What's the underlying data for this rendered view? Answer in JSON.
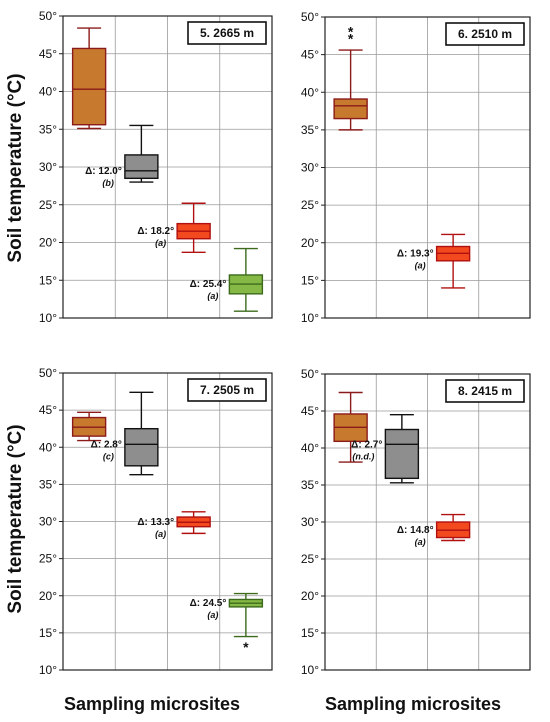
{
  "figure": {
    "ylabel": "Soil temperature (°C)",
    "xlabel": "Sampling microsites",
    "colors": {
      "brown_fill": "#c77a2e",
      "brown_edge": "#8b1a1a",
      "gray_fill": "#8e8e8e",
      "gray_edge": "#111111",
      "red_fill": "#f24a1e",
      "red_edge": "#b01010",
      "green_fill": "#86b845",
      "green_edge": "#3c6b1c"
    }
  },
  "chart_data": [
    {
      "type": "box",
      "title": "5. 2665 m",
      "ylim": [
        10,
        50
      ],
      "yticks": [
        "10°",
        "15°",
        "20°",
        "25°",
        "30°",
        "35°",
        "40°",
        "45°",
        "50°"
      ],
      "grid": true,
      "boxes": [
        {
          "color": "brown",
          "whisker_low": 35.1,
          "q1": 35.6,
          "median": 40.3,
          "q3": 45.7,
          "whisker_high": 48.4,
          "outliers": []
        },
        {
          "color": "gray",
          "whisker_low": 28.0,
          "q1": 28.5,
          "median": 29.5,
          "q3": 31.6,
          "whisker_high": 35.5,
          "outliers": [],
          "delta": "Δ: 12.0°",
          "sig": "(b)"
        },
        {
          "color": "red",
          "whisker_low": 18.7,
          "q1": 20.5,
          "median": 21.5,
          "q3": 22.5,
          "whisker_high": 25.2,
          "outliers": [],
          "delta": "Δ: 18.2°",
          "sig": "(a)"
        },
        {
          "color": "green",
          "whisker_low": 10.9,
          "q1": 13.2,
          "median": 14.5,
          "q3": 15.7,
          "whisker_high": 19.2,
          "outliers": [],
          "delta": "Δ: 25.4°",
          "sig": "(a)"
        }
      ]
    },
    {
      "type": "box",
      "title": "6. 2510 m",
      "ylim": [
        10,
        50
      ],
      "yticks": [
        "10°",
        "15°",
        "20°",
        "25°",
        "30°",
        "35°",
        "40°",
        "45°",
        "50°"
      ],
      "grid": true,
      "boxes": [
        {
          "color": "brown",
          "whisker_low": 35.0,
          "q1": 36.5,
          "median": 38.2,
          "q3": 39.1,
          "whisker_high": 45.6,
          "outliers": [
            47.3,
            48.2
          ]
        },
        null,
        {
          "color": "red",
          "whisker_low": 14.0,
          "q1": 17.6,
          "median": 18.6,
          "q3": 19.5,
          "whisker_high": 21.1,
          "outliers": [],
          "delta": "Δ: 19.3°",
          "sig": "(a)"
        },
        null
      ]
    },
    {
      "type": "box",
      "title": "7. 2505 m",
      "ylim": [
        10,
        50
      ],
      "yticks": [
        "10°",
        "15°",
        "20°",
        "25°",
        "30°",
        "35°",
        "40°",
        "45°",
        "50°"
      ],
      "grid": true,
      "boxes": [
        {
          "color": "brown",
          "whisker_low": 40.9,
          "q1": 41.5,
          "median": 42.7,
          "q3": 44.0,
          "whisker_high": 44.7,
          "outliers": []
        },
        {
          "color": "gray",
          "whisker_low": 36.3,
          "q1": 37.5,
          "median": 40.4,
          "q3": 42.5,
          "whisker_high": 47.4,
          "outliers": [],
          "delta": "Δ: 2.8°",
          "sig": "(c)"
        },
        {
          "color": "red",
          "whisker_low": 28.4,
          "q1": 29.3,
          "median": 29.9,
          "q3": 30.6,
          "whisker_high": 31.3,
          "outliers": [],
          "delta": "Δ: 13.3°",
          "sig": "(a)"
        },
        {
          "color": "green",
          "whisker_low": 14.5,
          "q1": 18.5,
          "median": 19.0,
          "q3": 19.5,
          "whisker_high": 20.3,
          "outliers": [
            13.2
          ],
          "delta": "Δ: 24.5°",
          "sig": "(a)"
        }
      ]
    },
    {
      "type": "box",
      "title": "8. 2415 m",
      "ylim": [
        10,
        50
      ],
      "yticks": [
        "10°",
        "15°",
        "20°",
        "25°",
        "30°",
        "35°",
        "40°",
        "45°",
        "50°"
      ],
      "grid": true,
      "boxes": [
        {
          "color": "brown",
          "whisker_low": 38.1,
          "q1": 40.9,
          "median": 42.8,
          "q3": 44.6,
          "whisker_high": 47.5,
          "outliers": []
        },
        {
          "color": "gray",
          "whisker_low": 35.3,
          "q1": 35.9,
          "median": 40.5,
          "q3": 42.5,
          "whisker_high": 44.5,
          "outliers": [],
          "delta": "Δ: 2.7°",
          "sig": "(n.d.)"
        },
        {
          "color": "red",
          "whisker_low": 27.5,
          "q1": 27.9,
          "median": 28.9,
          "q3": 30.0,
          "whisker_high": 31.0,
          "outliers": [],
          "delta": "Δ: 14.8°",
          "sig": "(a)"
        },
        null
      ]
    }
  ]
}
